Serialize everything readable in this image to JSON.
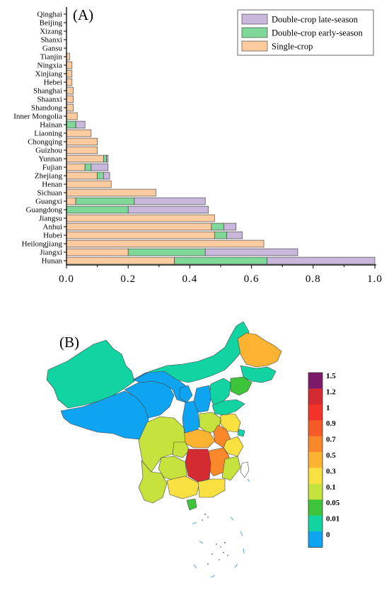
{
  "chart_data": [
    {
      "type": "bar",
      "orientation": "horizontal",
      "stacked": true,
      "panel_label": "(A)",
      "title": "",
      "xlabel": "",
      "ylabel": "",
      "xlim": [
        0,
        1.0
      ],
      "x_ticks": [
        "0.0",
        "0.2",
        "0.4",
        "0.6",
        "0.8",
        "1.0"
      ],
      "grid": false,
      "legend_position": "top-right",
      "categories": [
        "Hunan",
        "Jiangxi",
        "Heilongjiang",
        "Hubei",
        "Anhui",
        "Jiangsu",
        "Guangdong",
        "Guangxi",
        "Sichuan",
        "Henan",
        "Zhejiang",
        "Fujian",
        "Yunnan",
        "Guizhou",
        "Chongqing",
        "Liaoning",
        "Hainan",
        "Inner Mongolia",
        "Shandong",
        "Shaanxi",
        "Shanghai",
        "Hebei",
        "Xinjiang",
        "Ningxia",
        "Tianjin",
        "Gansu",
        "Shanxi",
        "Xizang",
        "Beijing",
        "Qinghai"
      ],
      "series": [
        {
          "name": "Single-crop",
          "color": "#fccca0",
          "values": [
            0.35,
            0.2,
            0.64,
            0.48,
            0.47,
            0.48,
            0.0,
            0.03,
            0.29,
            0.145,
            0.1,
            0.06,
            0.12,
            0.1,
            0.1,
            0.08,
            0.0,
            0.035,
            0.022,
            0.022,
            0.022,
            0.018,
            0.018,
            0.018,
            0.01,
            0,
            0,
            0,
            0,
            0
          ]
        },
        {
          "name": "Double-crop early-season",
          "color": "#80d898",
          "values": [
            0.3,
            0.25,
            0,
            0.04,
            0.04,
            0,
            0.2,
            0.19,
            0,
            0,
            0.02,
            0.02,
            0.01,
            0,
            0,
            0,
            0.03,
            0,
            0,
            0,
            0,
            0,
            0,
            0,
            0,
            0,
            0,
            0,
            0,
            0
          ]
        },
        {
          "name": "Double-crop late-season",
          "color": "#c9b8dc",
          "values": [
            0.35,
            0.3,
            0,
            0.05,
            0.04,
            0,
            0.26,
            0.23,
            0,
            0,
            0.02,
            0.055,
            0.005,
            0,
            0,
            0,
            0.03,
            0,
            0,
            0,
            0,
            0,
            0,
            0,
            0,
            0,
            0,
            0,
            0,
            0
          ]
        }
      ]
    },
    {
      "type": "heatmap",
      "subtype": "choropleth-map",
      "panel_label": "(B)",
      "title": "",
      "colorbar": {
        "labels": [
          "1.5",
          "1.2",
          "1",
          "0.9",
          "0.7",
          "0.5",
          "0.3",
          "0.1",
          "0.05",
          "0.01",
          "0"
        ],
        "colors": [
          "#7a1a68",
          "#d42a32",
          "#f2322b",
          "#f65a26",
          "#f8882a",
          "#fbb331",
          "#f8e040",
          "#c6e23c",
          "#3ec43a",
          "#12d4a2",
          "#0fa4f2"
        ]
      },
      "region_classes": {
        "very_high": "#d42a32",
        "high": "#f8882a",
        "mid_high": "#fbb331",
        "mid": "#f8e040",
        "low": "#c6e23c",
        "very_low": "#3ec43a",
        "minimal": "#12d4a2",
        "trace": "#1aaee8",
        "zero": "#0fa4f2"
      }
    }
  ]
}
